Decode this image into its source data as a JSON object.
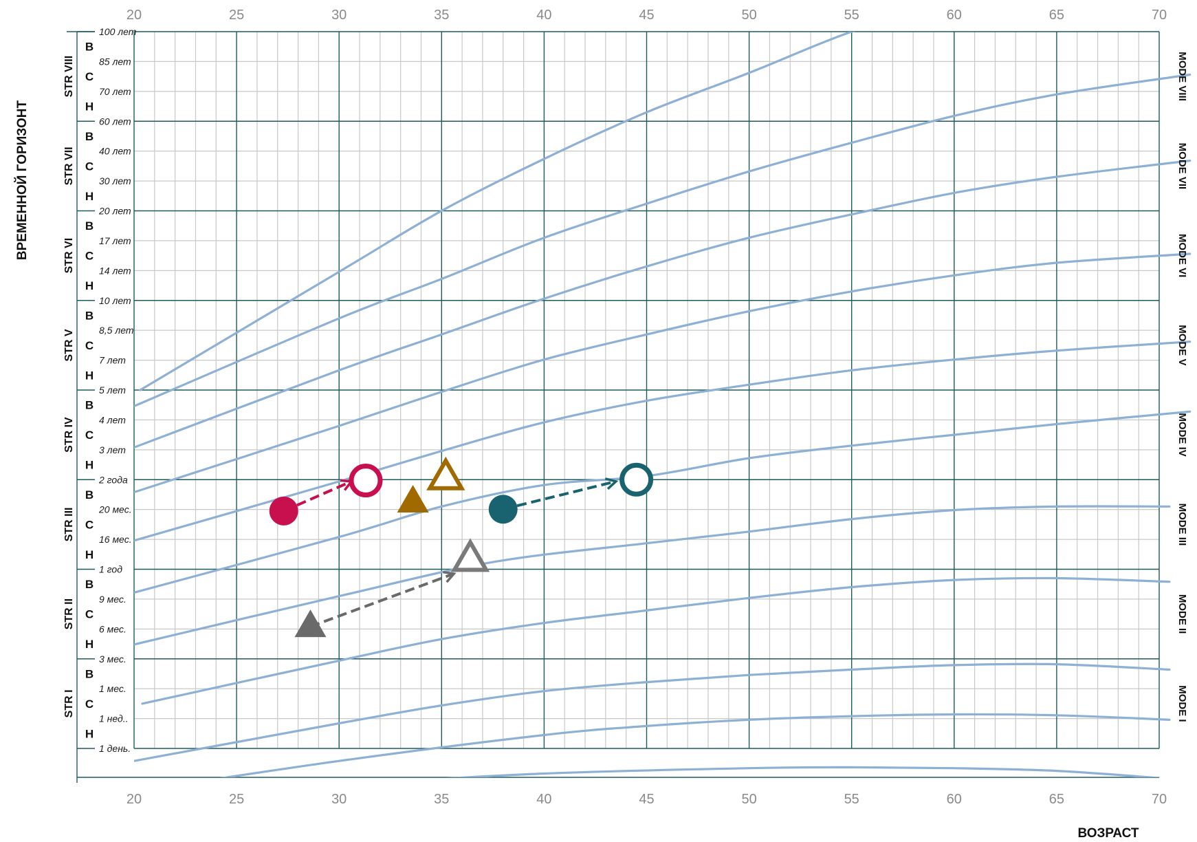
{
  "chart_data": {
    "type": "line",
    "xlabel": "ВОЗРАСТ",
    "ylabel": "ВРЕМЕННОЙ ГОРИЗОНТ",
    "xlim": [
      20,
      70
    ],
    "x_ticks": [
      20,
      25,
      30,
      35,
      40,
      45,
      50,
      55,
      60,
      65,
      70
    ],
    "y_levels": [
      {
        "label": "1 день.",
        "level": 0.5
      },
      {
        "label": "1 нед..",
        "level": 0.833
      },
      {
        "label": "1 мес.",
        "level": 1.167
      },
      {
        "label": "3 мес.",
        "level": 1.5
      },
      {
        "label": "6 мес.",
        "level": 1.833
      },
      {
        "label": "9 мес.",
        "level": 2.167
      },
      {
        "label": "1 год",
        "level": 2.5
      },
      {
        "label": "16 мес.",
        "level": 2.833
      },
      {
        "label": "20 мес.",
        "level": 3.167
      },
      {
        "label": "2 года",
        "level": 3.5
      },
      {
        "label": "3 лет",
        "level": 3.833
      },
      {
        "label": "4 лет",
        "level": 4.167
      },
      {
        "label": "5 лет",
        "level": 4.5
      },
      {
        "label": "7 лет",
        "level": 4.833
      },
      {
        "label": "8,5 лет",
        "level": 5.167
      },
      {
        "label": "10 лет",
        "level": 5.5
      },
      {
        "label": "14 лет",
        "level": 5.833
      },
      {
        "label": "17 лет",
        "level": 6.167
      },
      {
        "label": "20 лет",
        "level": 6.5
      },
      {
        "label": "30 лет",
        "level": 6.833
      },
      {
        "label": "40 лет",
        "level": 7.167
      },
      {
        "label": "60 лет",
        "level": 7.5
      },
      {
        "label": "70 лет",
        "level": 7.833
      },
      {
        "label": "85 лет",
        "level": 8.167
      },
      {
        "label": "100 лет",
        "level": 8.5
      }
    ],
    "strata": [
      {
        "label": "STR  I",
        "from": 0.5,
        "to": 1.5
      },
      {
        "label": "STR  II",
        "from": 1.5,
        "to": 2.5
      },
      {
        "label": "STR  III",
        "from": 2.5,
        "to": 3.5
      },
      {
        "label": "STR  IV",
        "from": 3.5,
        "to": 4.5
      },
      {
        "label": "STR  V",
        "from": 4.5,
        "to": 5.5
      },
      {
        "label": "STR  VI",
        "from": 5.5,
        "to": 6.5
      },
      {
        "label": "STR  VII",
        "from": 6.5,
        "to": 7.5
      },
      {
        "label": "STR  VIII",
        "from": 7.5,
        "to": 8.5
      }
    ],
    "sublevels": [
      "Н",
      "С",
      "В"
    ],
    "modes": [
      "MODE  I",
      "MODE  II",
      "MODE  III",
      "MODE  IV",
      "MODE  V",
      "MODE  VI",
      "MODE  VII",
      "MODE  VIII"
    ],
    "curves": [
      {
        "points": [
          [
            30.2,
            0.1
          ],
          [
            40,
            0.22
          ],
          [
            50,
            0.28
          ],
          [
            55,
            0.29
          ],
          [
            60,
            0.28
          ],
          [
            65,
            0.25
          ],
          [
            70,
            0.17
          ]
        ]
      },
      {
        "points": [
          [
            20,
            0.02
          ],
          [
            30,
            0.36
          ],
          [
            40,
            0.65
          ],
          [
            45,
            0.75
          ],
          [
            50,
            0.82
          ],
          [
            55,
            0.86
          ],
          [
            60,
            0.88
          ],
          [
            65,
            0.87
          ],
          [
            70.5,
            0.82
          ]
        ]
      },
      {
        "points": [
          [
            20,
            0.36
          ],
          [
            30,
            0.78
          ],
          [
            35,
            0.98
          ],
          [
            40,
            1.14
          ],
          [
            45,
            1.24
          ],
          [
            50,
            1.32
          ],
          [
            55,
            1.38
          ],
          [
            60,
            1.43
          ],
          [
            65,
            1.44
          ],
          [
            70.5,
            1.38
          ]
        ]
      },
      {
        "points": [
          [
            20.4,
            1.0
          ],
          [
            30,
            1.48
          ],
          [
            35,
            1.72
          ],
          [
            40,
            1.9
          ],
          [
            45,
            2.04
          ],
          [
            50,
            2.18
          ],
          [
            55,
            2.3
          ],
          [
            60,
            2.38
          ],
          [
            65,
            2.4
          ],
          [
            70.5,
            2.36
          ]
        ]
      },
      {
        "points": [
          [
            20,
            1.66
          ],
          [
            30,
            2.2
          ],
          [
            37.5,
            2.58
          ],
          [
            45,
            2.79
          ],
          [
            50,
            2.92
          ],
          [
            55,
            3.06
          ],
          [
            60,
            3.16
          ],
          [
            65,
            3.2
          ],
          [
            70.5,
            3.2
          ]
        ]
      },
      {
        "points": [
          [
            20,
            2.24
          ],
          [
            30,
            2.86
          ],
          [
            35,
            3.2
          ],
          [
            40,
            3.44
          ],
          [
            45,
            3.54
          ],
          [
            50,
            3.74
          ],
          [
            55,
            3.88
          ],
          [
            60,
            4.0
          ],
          [
            65,
            4.12
          ],
          [
            71.5,
            4.26
          ]
        ]
      },
      {
        "points": [
          [
            20,
            2.82
          ],
          [
            30,
            3.48
          ],
          [
            35,
            3.82
          ],
          [
            40,
            4.14
          ],
          [
            45,
            4.38
          ],
          [
            50,
            4.56
          ],
          [
            55,
            4.72
          ],
          [
            60,
            4.84
          ],
          [
            65,
            4.94
          ],
          [
            71.5,
            5.04
          ]
        ]
      },
      {
        "points": [
          [
            20,
            3.36
          ],
          [
            30,
            4.1
          ],
          [
            35,
            4.48
          ],
          [
            40,
            4.84
          ],
          [
            45,
            5.12
          ],
          [
            50,
            5.38
          ],
          [
            55,
            5.6
          ],
          [
            60,
            5.78
          ],
          [
            65,
            5.92
          ],
          [
            71.5,
            6.02
          ]
        ]
      },
      {
        "points": [
          [
            20,
            3.86
          ],
          [
            30,
            4.72
          ],
          [
            35,
            5.12
          ],
          [
            40,
            5.52
          ],
          [
            45,
            5.88
          ],
          [
            50,
            6.2
          ],
          [
            55,
            6.46
          ],
          [
            60,
            6.7
          ],
          [
            65,
            6.88
          ],
          [
            71.5,
            7.06
          ]
        ]
      },
      {
        "points": [
          [
            20,
            4.32
          ],
          [
            30,
            5.3
          ],
          [
            35,
            5.74
          ],
          [
            40,
            6.2
          ],
          [
            45,
            6.58
          ],
          [
            50,
            6.94
          ],
          [
            55,
            7.26
          ],
          [
            60,
            7.56
          ],
          [
            65,
            7.8
          ],
          [
            71.5,
            8.02
          ]
        ]
      },
      {
        "points": [
          [
            20.3,
            4.5
          ],
          [
            30,
            5.82
          ],
          [
            35,
            6.5
          ],
          [
            40,
            7.08
          ],
          [
            45,
            7.6
          ],
          [
            50,
            8.04
          ],
          [
            55,
            8.5
          ],
          [
            60,
            8.84
          ],
          [
            65,
            9.16
          ],
          [
            67.5,
            9.28
          ]
        ]
      }
    ],
    "extension": {
      "points": [
        [
          55,
          8.5
        ],
        [
          57.8,
          8.64
        ]
      ]
    },
    "markers": [
      {
        "shape": "circle",
        "filled": true,
        "color": "#c8104e",
        "x": 27.3,
        "y": 3.15
      },
      {
        "shape": "circle",
        "filled": false,
        "color": "#c8104e",
        "x": 31.3,
        "y": 3.49
      },
      {
        "shape": "triangle",
        "filled": true,
        "color": "#a06a00",
        "x": 33.6,
        "y": 3.25
      },
      {
        "shape": "triangle",
        "filled": false,
        "color": "#a06a00",
        "x": 35.2,
        "y": 3.52
      },
      {
        "shape": "circle",
        "filled": true,
        "color": "#18636f",
        "x": 38.0,
        "y": 3.17
      },
      {
        "shape": "circle",
        "filled": false,
        "color": "#18636f",
        "x": 44.5,
        "y": 3.5
      },
      {
        "shape": "triangle",
        "filled": true,
        "color": "#6a6a6a",
        "x": 28.6,
        "y": 1.86
      },
      {
        "shape": "triangle",
        "filled": false,
        "color": "#7a7a7a",
        "x": 36.4,
        "y": 2.61
      }
    ],
    "arrows": [
      {
        "color": "#c8104e",
        "from": [
          27.3,
          3.15
        ],
        "to": [
          30.6,
          3.48
        ]
      },
      {
        "color": "#18636f",
        "from": [
          38.0,
          3.17
        ],
        "to": [
          43.5,
          3.48
        ]
      },
      {
        "color": "#6a6a6a",
        "from": [
          28.6,
          1.86
        ],
        "to": [
          35.6,
          2.45
        ]
      }
    ],
    "colors": {
      "curve": "#8db0d4",
      "major_grid": "#1f5a5a",
      "minor_grid": "#c8c8c8",
      "tick": "#8a8a8a"
    }
  }
}
